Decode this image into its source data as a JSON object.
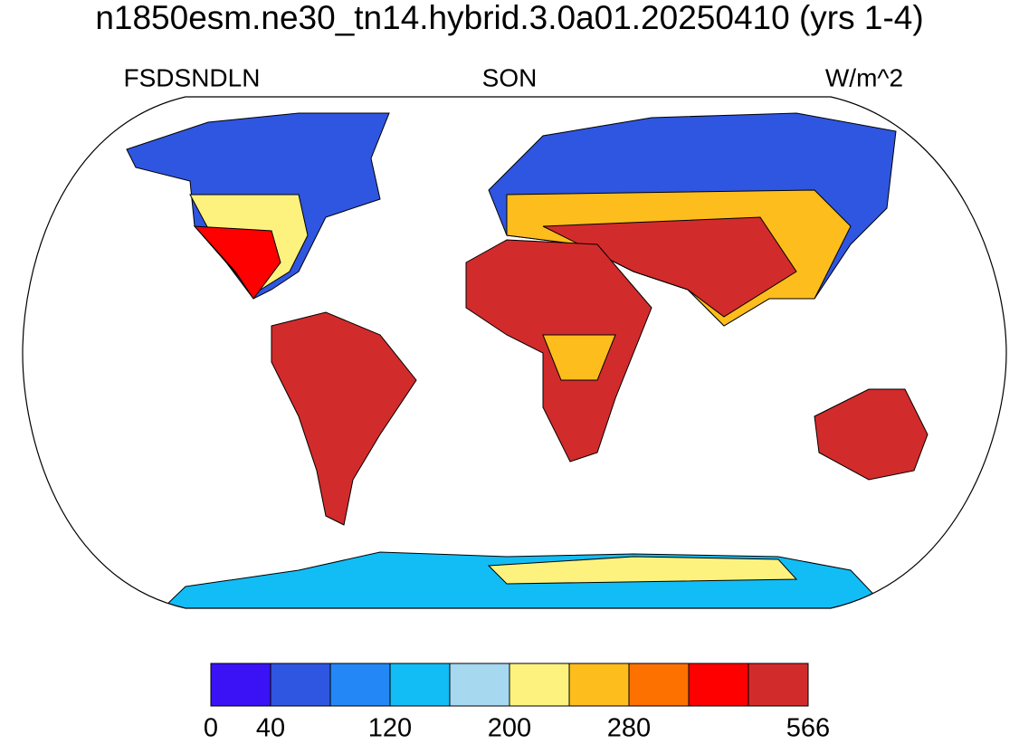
{
  "title": "n1850esm.ne30_tn14.hybrid.3.0a01.20250410 (yrs 1-4)",
  "left_string": "FSDSNDLN",
  "center_string": "SON",
  "right_string": "W/m^2",
  "colorbar": {
    "colors": [
      "#3a12f5",
      "#2f56e0",
      "#2388f5",
      "#12bdf5",
      "#a6d8f0",
      "#fdf27e",
      "#fdbd1d",
      "#fd7100",
      "#fe0000",
      "#d22b2b"
    ],
    "boundaries": [
      0,
      40,
      null,
      120,
      null,
      200,
      null,
      280,
      null,
      null,
      566
    ]
  }
}
